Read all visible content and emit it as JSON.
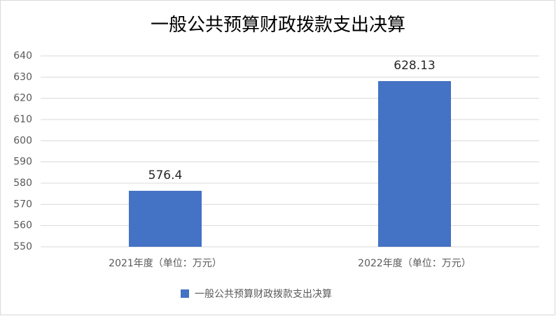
{
  "chart_data": {
    "type": "bar",
    "title": "一般公共预算财政拨款支出决算",
    "categories": [
      "2021年度（单位：万元）",
      "2022年度（单位：万元）"
    ],
    "series": [
      {
        "name": "一般公共预算财政拨款支出决算",
        "color": "#4472c4",
        "values": [
          576.4,
          628.13
        ]
      }
    ],
    "ylim": [
      550,
      640
    ],
    "yticks": [
      550,
      560,
      570,
      580,
      590,
      600,
      610,
      620,
      630,
      640
    ],
    "grid": true,
    "legend": "bottom"
  }
}
